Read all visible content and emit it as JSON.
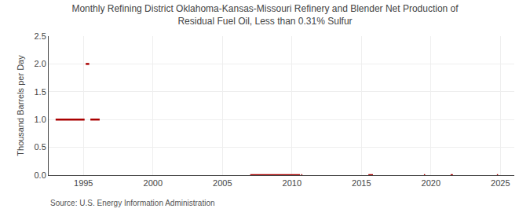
{
  "chart_data": {
    "type": "line",
    "title": "Monthly Refining District Oklahoma-Kansas-Missouri Refinery and Blender Net Production of\nResidual Fuel Oil, Less than 0.31% Sulfur",
    "ylabel": "Thousand Barrels per Day",
    "annotations": [
      "Source: U.S. Energy Information Administration"
    ],
    "color": "#aa0000",
    "grid": true,
    "xlim": [
      1992.5,
      2026
    ],
    "ylim": [
      0,
      2.5
    ],
    "xticks": [
      1995,
      2000,
      2005,
      2010,
      2015,
      2020,
      2025
    ],
    "yticks": [
      {
        "value": 0,
        "label": "0.0"
      },
      0.5,
      {
        "value": 1,
        "label": "1.0"
      },
      1.5,
      {
        "value": 2,
        "label": "2.0"
      },
      2.5
    ],
    "x": [
      1993.0,
      1993.083,
      1993.167,
      1993.25,
      1993.333,
      1993.417,
      1993.5,
      1993.583,
      1993.667,
      1993.75,
      1993.833,
      1993.917,
      1994.0,
      1994.083,
      1994.167,
      1994.25,
      1994.333,
      1994.417,
      1994.5,
      1994.583,
      1994.667,
      1994.75,
      1994.833,
      1994.917,
      1995.0,
      1995.083,
      null,
      1995.167,
      1995.25,
      1995.333,
      1995.417,
      null,
      1995.5,
      1995.583,
      1995.667,
      1995.75,
      1995.833,
      1995.917,
      1996.0,
      1996.083,
      1996.167,
      null,
      1996.5,
      null,
      2007.0,
      2007.083,
      2007.167,
      2007.25,
      2007.333,
      2007.417,
      2007.5,
      2007.583,
      2007.667,
      2007.75,
      2007.833,
      2007.917,
      2008.0,
      2008.083,
      2008.167,
      2008.25,
      2008.333,
      2008.417,
      2008.5,
      2008.583,
      2008.667,
      2008.75,
      2008.833,
      2008.917,
      2009.0,
      2009.083,
      2009.167,
      2009.25,
      2009.333,
      2009.417,
      2009.5,
      2009.583,
      2009.667,
      2009.75,
      2009.833,
      2009.917,
      2010.0,
      2010.083,
      2010.167,
      2010.25,
      2010.333,
      2010.417,
      2010.5,
      2010.583,
      null,
      2010.667,
      2010.75,
      null,
      2015.5,
      2015.583,
      2015.667,
      2015.75,
      2015.833,
      null,
      2019.5,
      2019.583,
      null,
      2021.417,
      2021.5,
      2021.583,
      null,
      2024.75,
      2024.833
    ],
    "values": [
      1.0,
      1.0,
      1.0,
      1.0,
      1.0,
      1.0,
      1.0,
      1.0,
      1.0,
      1.0,
      1.0,
      1.0,
      1.0,
      1.0,
      1.0,
      1.0,
      1.0,
      1.0,
      1.0,
      1.0,
      1.0,
      1.0,
      1.0,
      1.0,
      1.0,
      1.0,
      null,
      2.0,
      2.0,
      2.0,
      2.0,
      null,
      1.0,
      1.0,
      1.0,
      1.0,
      1.0,
      1.0,
      1.0,
      1.0,
      1.0,
      null,
      0.0,
      null,
      0.0,
      0.0,
      0.0,
      0.0,
      0.0,
      0.0,
      0.0,
      0.0,
      0.0,
      0.0,
      0.0,
      0.0,
      0.0,
      0.0,
      0.0,
      0.0,
      0.0,
      0.0,
      0.0,
      0.0,
      0.0,
      0.0,
      0.0,
      0.0,
      0.0,
      0.0,
      0.0,
      0.0,
      0.0,
      0.0,
      0.0,
      0.0,
      0.0,
      0.0,
      0.0,
      0.0,
      0.0,
      0.0,
      0.0,
      0.0,
      0.0,
      0.0,
      0.0,
      0.0,
      null,
      0.0,
      0.0,
      null,
      0.0,
      0.0,
      0.0,
      0.0,
      0.0,
      null,
      0.0,
      0.0,
      null,
      0.0,
      0.0,
      0.0,
      null,
      0.0,
      0.0
    ]
  }
}
